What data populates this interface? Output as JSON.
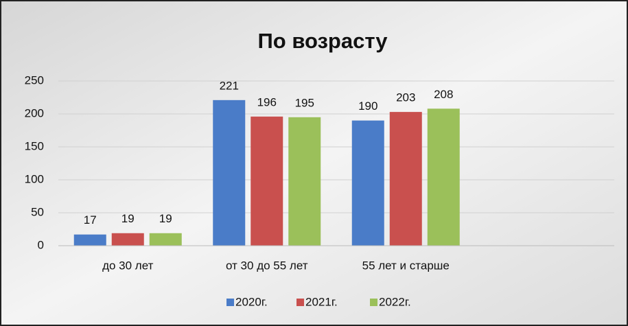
{
  "chart_data": {
    "type": "bar",
    "title": "По возрасту",
    "categories": [
      "до 30 лет",
      "от 30 до 55 лет",
      "55 лет и старше",
      null
    ],
    "series": [
      {
        "name": "2020г.",
        "color": "#4a7cc8",
        "values": [
          17,
          221,
          190,
          null
        ]
      },
      {
        "name": "2021г.",
        "color": "#c9504e",
        "values": [
          19,
          196,
          203,
          null
        ]
      },
      {
        "name": "2022г.",
        "color": "#9bc05a",
        "values": [
          19,
          195,
          208,
          null
        ]
      }
    ],
    "ylim": [
      0,
      250
    ],
    "yticks": [
      0,
      50,
      100,
      150,
      200,
      250
    ],
    "grid": true,
    "legend": "bottom"
  }
}
